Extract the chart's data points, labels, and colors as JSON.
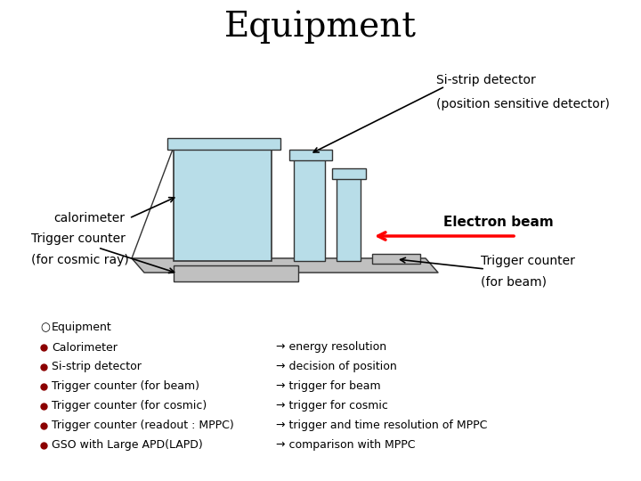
{
  "title": "Equipment",
  "title_fontsize": 28,
  "bg_color": "#ffffff",
  "label_sistrip_line1": "Si-strip detector",
  "label_sistrip_line2": "(position sensitive detector)",
  "label_calorimeter": "calorimeter",
  "label_trigger_cosmic_line1": "Trigger counter",
  "label_trigger_cosmic_line2": "(for cosmic ray)",
  "label_trigger_beam_line1": "Trigger counter",
  "label_trigger_beam_line2": "(for beam)",
  "label_electron_beam": "Electron beam",
  "bullet_left": [
    "○Equipment",
    "●Calorimeter",
    "●Si-strip detector",
    "●Trigger counter (for beam)",
    "●Trigger counter (for cosmic)",
    "●Trigger counter (readout : MPPC)",
    "●GSO with Large APD(LAPD)"
  ],
  "bullet_right": [
    "",
    "→ energy resolution",
    "→ decision of position",
    "→ trigger for beam",
    "→ trigger for cosmic",
    "→ trigger and time resolution of MPPC",
    "→ comparison with MPPC"
  ],
  "light_blue": "#b8dde8",
  "light_gray": "#c0c0c0",
  "dark_outline": "#333333",
  "beam_arrow_color": "#cc0000",
  "label_fontsize": 10,
  "bullet_fontsize": 9
}
